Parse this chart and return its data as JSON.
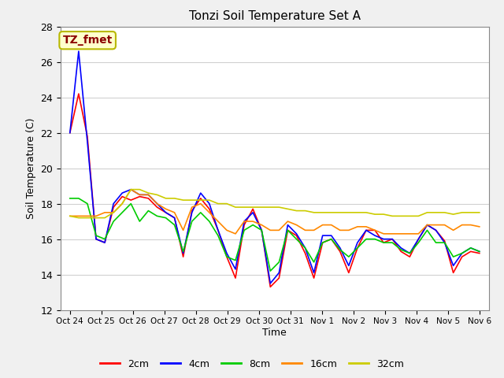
{
  "title": "Tonzi Soil Temperature Set A",
  "xlabel": "Time",
  "ylabel": "Soil Temperature (C)",
  "annotation": "TZ_fmet",
  "ylim": [
    12,
    28
  ],
  "yticks": [
    12,
    14,
    16,
    18,
    20,
    22,
    24,
    26,
    28
  ],
  "fig_bg": "#f0f0f0",
  "plot_bg": "#ffffff",
  "series_colors": {
    "2cm": "#ff0000",
    "4cm": "#0000ff",
    "8cm": "#00cc00",
    "16cm": "#ff8800",
    "32cm": "#cccc00"
  },
  "x_labels": [
    "Oct 24",
    "Oct 25",
    "Oct 26",
    "Oct 27",
    "Oct 28",
    "Oct 29",
    "Oct 30",
    "Oct 31",
    "Nov 1",
    "Nov 2",
    "Nov 3",
    "Nov 4",
    "Nov 5",
    "Nov 6"
  ],
  "data": {
    "2cm": [
      22.0,
      24.2,
      21.8,
      16.0,
      15.8,
      17.8,
      18.4,
      18.2,
      18.4,
      18.3,
      17.8,
      17.5,
      17.2,
      15.0,
      17.6,
      18.3,
      17.7,
      16.5,
      15.0,
      13.8,
      16.8,
      17.7,
      16.5,
      13.3,
      13.8,
      16.5,
      16.2,
      15.2,
      13.8,
      15.8,
      16.0,
      15.3,
      14.1,
      15.5,
      16.5,
      16.5,
      15.8,
      16.0,
      15.3,
      15.0,
      16.0,
      16.8,
      16.5,
      15.9,
      14.1,
      15.0,
      15.3,
      15.2
    ],
    "4cm": [
      22.0,
      26.6,
      21.5,
      16.0,
      15.8,
      18.0,
      18.6,
      18.8,
      18.5,
      18.5,
      18.0,
      17.5,
      17.2,
      15.2,
      17.5,
      18.6,
      18.0,
      16.5,
      15.2,
      14.3,
      17.0,
      17.5,
      16.5,
      13.5,
      14.1,
      16.8,
      16.3,
      15.5,
      14.1,
      16.2,
      16.2,
      15.5,
      14.5,
      15.8,
      16.5,
      16.2,
      16.0,
      16.0,
      15.5,
      15.2,
      16.0,
      16.8,
      16.5,
      15.8,
      14.5,
      15.2,
      15.5,
      15.3
    ],
    "8cm": [
      18.3,
      18.3,
      18.0,
      16.2,
      16.0,
      17.0,
      17.5,
      18.0,
      17.0,
      17.6,
      17.3,
      17.2,
      16.8,
      15.3,
      17.0,
      17.5,
      17.0,
      16.2,
      15.0,
      14.8,
      16.5,
      16.8,
      16.5,
      14.2,
      14.7,
      16.5,
      16.0,
      15.5,
      14.7,
      15.8,
      16.0,
      15.4,
      15.0,
      15.5,
      16.0,
      16.0,
      15.8,
      15.8,
      15.4,
      15.2,
      15.8,
      16.5,
      15.8,
      15.8,
      15.0,
      15.2,
      15.5,
      15.3
    ],
    "16cm": [
      17.3,
      17.3,
      17.3,
      17.3,
      17.5,
      17.5,
      18.0,
      18.8,
      18.5,
      18.5,
      18.0,
      17.7,
      17.5,
      16.5,
      17.8,
      18.0,
      17.5,
      17.0,
      16.5,
      16.3,
      17.0,
      17.0,
      16.8,
      16.5,
      16.5,
      17.0,
      16.8,
      16.5,
      16.5,
      16.8,
      16.8,
      16.5,
      16.5,
      16.7,
      16.7,
      16.5,
      16.3,
      16.3,
      16.3,
      16.3,
      16.3,
      16.8,
      16.8,
      16.8,
      16.5,
      16.8,
      16.8,
      16.7
    ],
    "32cm": [
      17.3,
      17.2,
      17.2,
      17.2,
      17.2,
      17.5,
      18.0,
      18.8,
      18.8,
      18.6,
      18.5,
      18.3,
      18.3,
      18.2,
      18.2,
      18.2,
      18.2,
      18.0,
      18.0,
      17.8,
      17.8,
      17.8,
      17.8,
      17.8,
      17.8,
      17.7,
      17.6,
      17.6,
      17.5,
      17.5,
      17.5,
      17.5,
      17.5,
      17.5,
      17.5,
      17.4,
      17.4,
      17.3,
      17.3,
      17.3,
      17.3,
      17.5,
      17.5,
      17.5,
      17.4,
      17.5,
      17.5,
      17.5
    ]
  }
}
